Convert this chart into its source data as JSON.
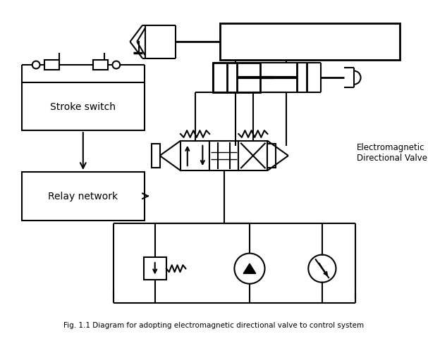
{
  "title": "Fig. 1.1 Diagram for adopting electromagnetic directional valve to control system",
  "bg_color": "#ffffff",
  "lc": "#000000",
  "lw": 1.5,
  "fig_w": 6.07,
  "fig_h": 4.85,
  "dpi": 100,
  "stroke_switch_label": "Stroke switch",
  "relay_label": "Relay network",
  "valve_label": "Electromagnetic\nDirectional Valve"
}
